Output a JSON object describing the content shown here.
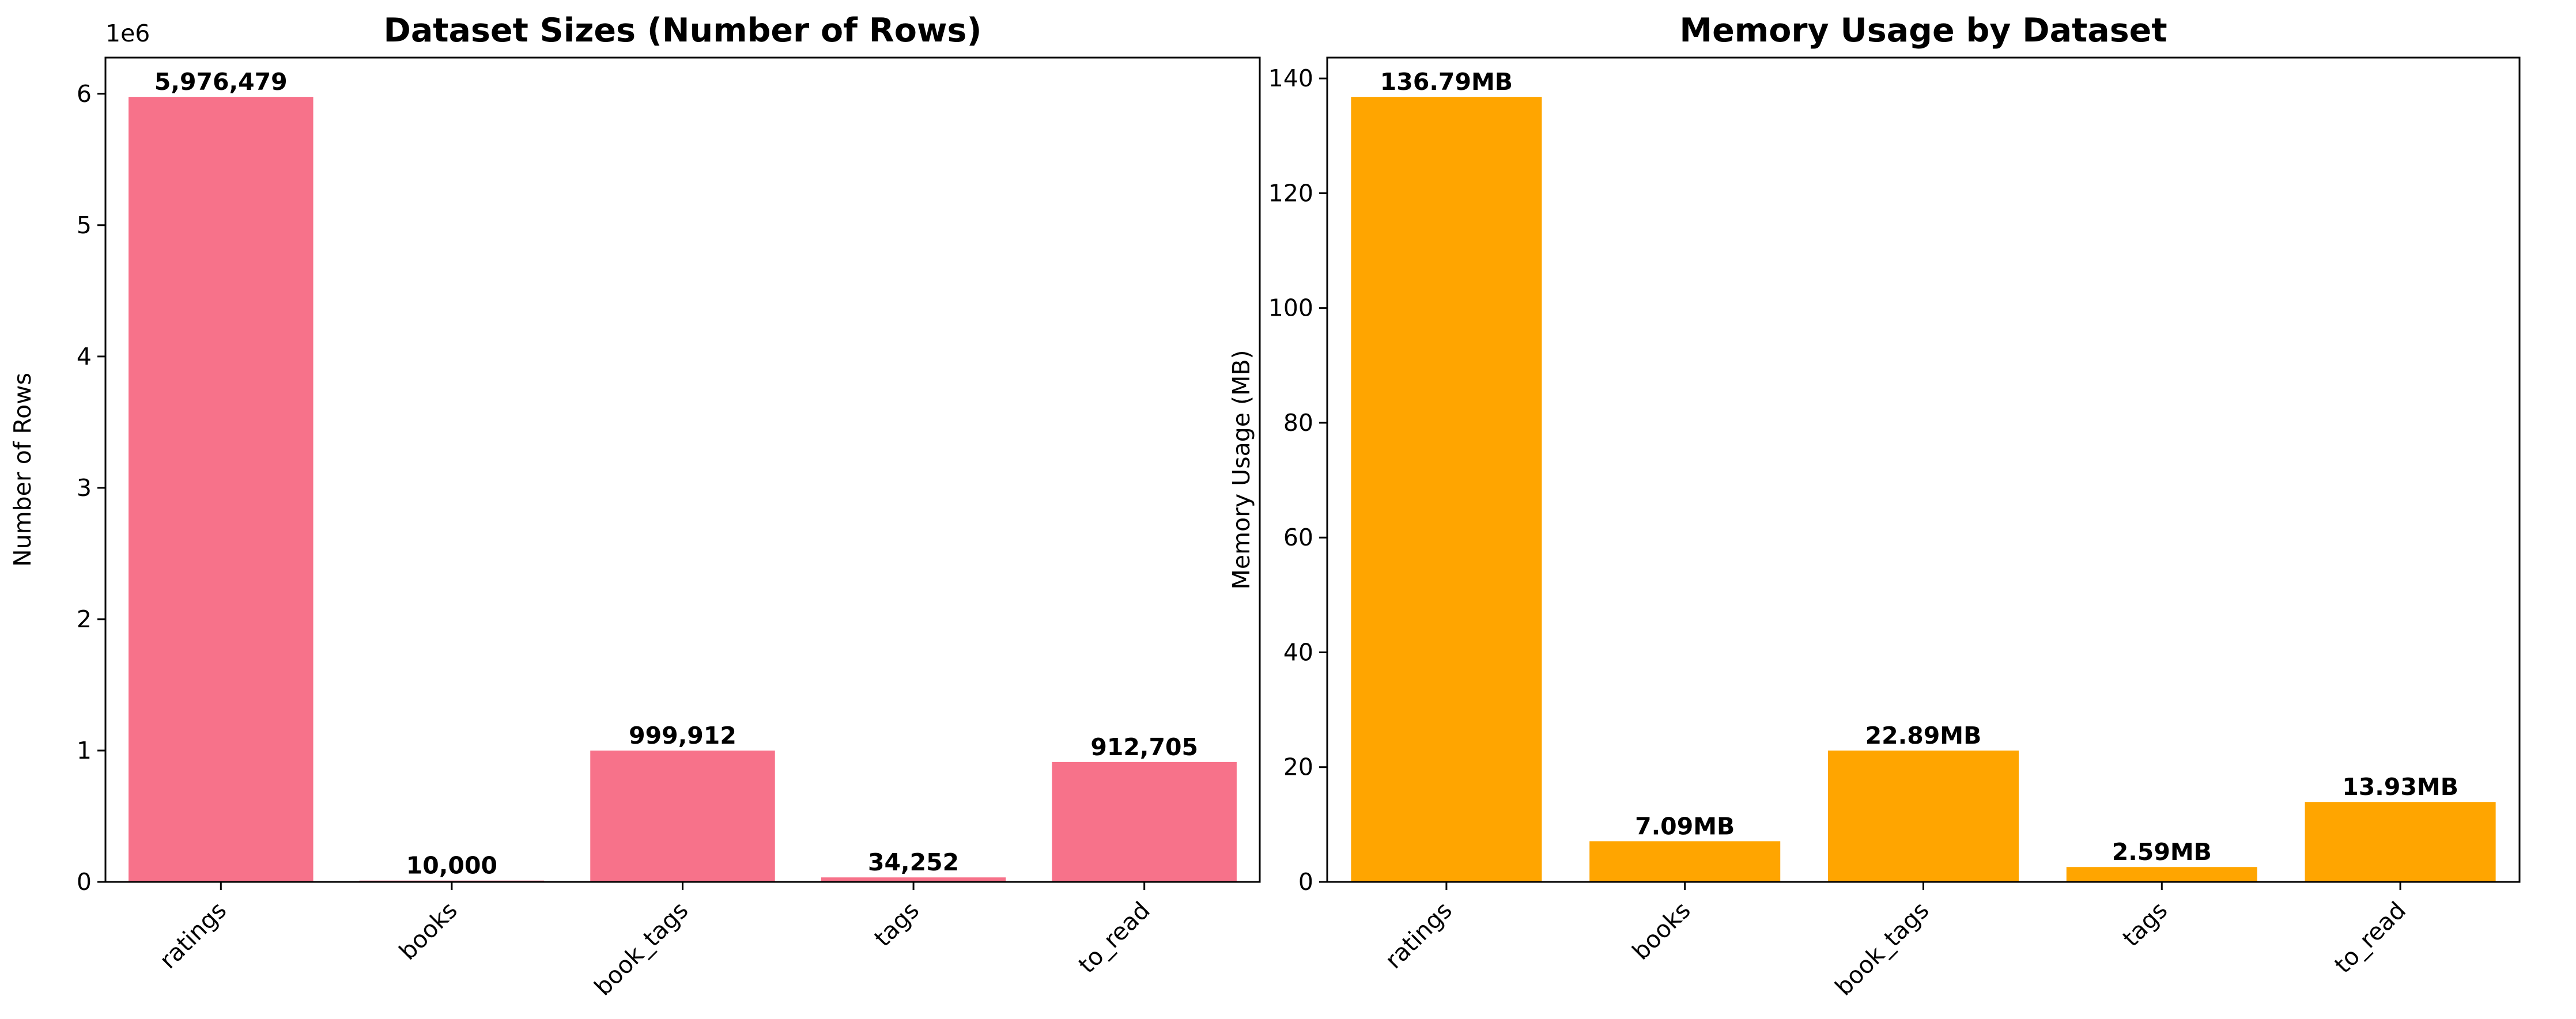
{
  "chart_data": [
    {
      "type": "bar",
      "title": "Dataset Sizes (Number of Rows)",
      "xlabel": "",
      "ylabel": "Number of Rows",
      "axis_offset_label": "1e6",
      "categories": [
        "ratings",
        "books",
        "book_tags",
        "tags",
        "to_read"
      ],
      "values": [
        5976479,
        10000,
        999912,
        34252,
        912705
      ],
      "value_labels": [
        "5,976,479",
        "10,000",
        "999,912",
        "34,252",
        "912,705"
      ],
      "ylim": [
        0,
        6275303
      ],
      "yticks": [
        0,
        1000000,
        2000000,
        3000000,
        4000000,
        5000000,
        6000000
      ],
      "ytick_labels": [
        "0",
        "1",
        "2",
        "3",
        "4",
        "5",
        "6"
      ],
      "color": "#f7728a",
      "grid": false,
      "x_tick_rotation": 45
    },
    {
      "type": "bar",
      "title": "Memory Usage by Dataset",
      "xlabel": "",
      "ylabel": "Memory Usage (MB)",
      "axis_offset_label": "",
      "categories": [
        "ratings",
        "books",
        "book_tags",
        "tags",
        "to_read"
      ],
      "values": [
        136.79,
        7.09,
        22.89,
        2.59,
        13.93
      ],
      "value_labels": [
        "136.79MB",
        "7.09MB",
        "22.89MB",
        "2.59MB",
        "13.93MB"
      ],
      "ylim": [
        0,
        143.63
      ],
      "yticks": [
        0,
        20,
        40,
        60,
        80,
        100,
        120,
        140
      ],
      "ytick_labels": [
        "0",
        "20",
        "40",
        "60",
        "80",
        "100",
        "120",
        "140"
      ],
      "color": "#ffa500",
      "grid": false,
      "x_tick_rotation": 45
    }
  ]
}
